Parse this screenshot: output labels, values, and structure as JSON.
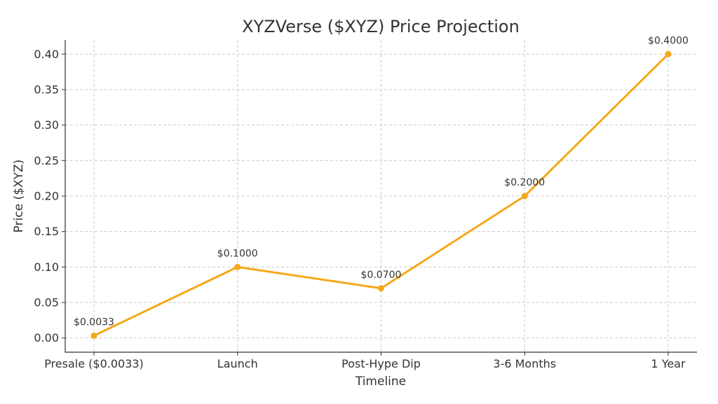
{
  "chart_data": {
    "type": "line",
    "title": "XYZVerse ($XYZ) Price Projection",
    "xlabel": "Timeline",
    "ylabel": "Price ($XYZ)",
    "categories": [
      "Presale ($0.0033)",
      "Launch",
      "Post-Hype Dip",
      "3-6 Months",
      "1 Year"
    ],
    "values": [
      0.0033,
      0.1,
      0.07,
      0.2,
      0.4
    ],
    "data_labels": [
      "$0.0033",
      "$0.1000",
      "$0.0700",
      "$0.2000",
      "$0.4000"
    ],
    "yticks": [
      "0.00",
      "0.05",
      "0.10",
      "0.15",
      "0.20",
      "0.25",
      "0.30",
      "0.35",
      "0.40"
    ],
    "ylim": [
      -0.02,
      0.42
    ],
    "grid": true,
    "line_color": "#f5a818"
  }
}
